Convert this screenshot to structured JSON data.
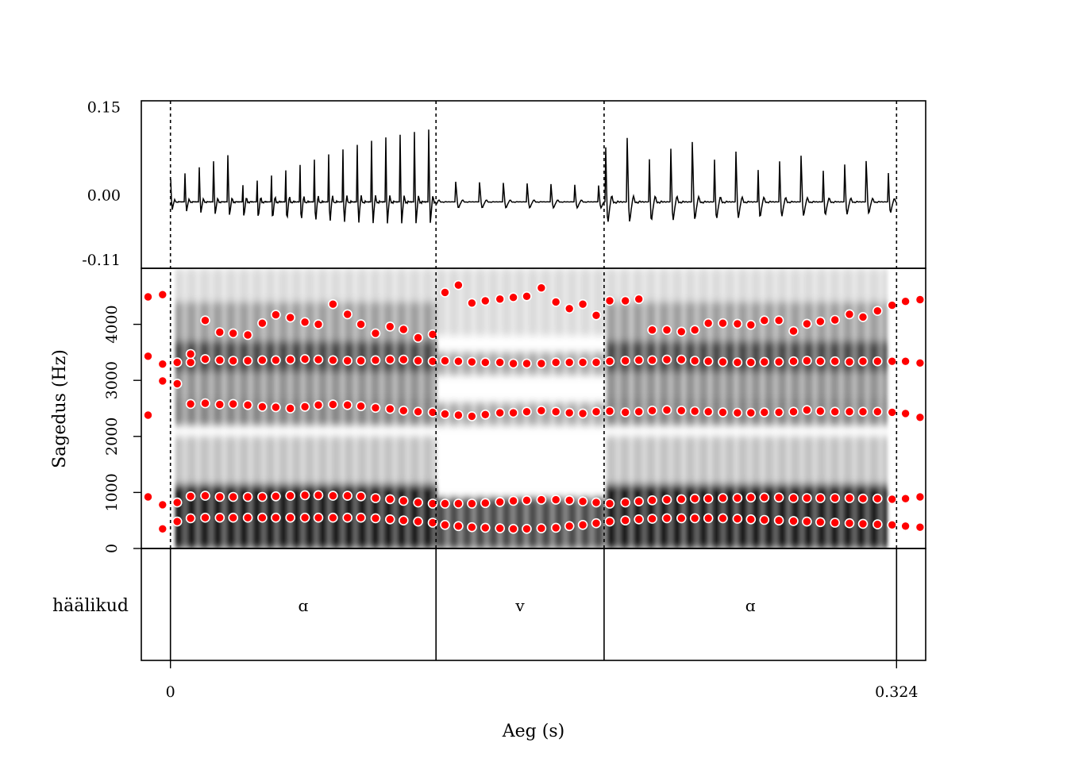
{
  "chart_data": {
    "type": "spectrogram",
    "xlabel": "Aeg (s)",
    "x_ticks": [
      "0",
      "0.324"
    ],
    "x_range": [
      -0.013,
      0.337
    ],
    "waveform": {
      "y_ticks": [
        "0.15",
        "0.00",
        "-0.11"
      ],
      "y_tick_values": [
        0.15,
        0.0,
        -0.11
      ],
      "y_range": [
        -0.125,
        0.16
      ]
    },
    "spectrogram": {
      "ylabel": "Sagedus (Hz)",
      "y_ticks": [
        "0",
        "1000",
        "2000",
        "3000",
        "4000"
      ],
      "y_tick_values": [
        0,
        1000,
        2000,
        3000,
        4000
      ],
      "y_range": [
        0,
        5000
      ],
      "formant_color": "#ff0000",
      "formants": {
        "t": [
          -0.01,
          -0.0035,
          0.003,
          0.009,
          0.0155,
          0.022,
          0.028,
          0.0345,
          0.041,
          0.047,
          0.0535,
          0.06,
          0.066,
          0.0725,
          0.079,
          0.085,
          0.0915,
          0.098,
          0.104,
          0.1105,
          0.117,
          0.1225,
          0.1285,
          0.1345,
          0.1405,
          0.147,
          0.153,
          0.159,
          0.1655,
          0.172,
          0.178,
          0.184,
          0.19,
          0.196,
          0.203,
          0.209,
          0.215,
          0.2215,
          0.228,
          0.234,
          0.24,
          0.2465,
          0.253,
          0.259,
          0.265,
          0.2715,
          0.278,
          0.284,
          0.29,
          0.2965,
          0.303,
          0.309,
          0.3155,
          0.322,
          0.328,
          0.3345
        ],
        "F1": [
          null,
          350,
          480,
          540,
          550,
          550,
          550,
          550,
          550,
          550,
          550,
          550,
          550,
          550,
          550,
          550,
          540,
          520,
          500,
          480,
          460,
          420,
          400,
          380,
          370,
          360,
          350,
          350,
          360,
          370,
          400,
          420,
          450,
          480,
          500,
          520,
          530,
          540,
          540,
          540,
          540,
          540,
          530,
          520,
          510,
          500,
          490,
          480,
          470,
          460,
          450,
          440,
          430,
          420,
          400,
          380
        ],
        "F2": [
          920,
          780,
          820,
          930,
          940,
          920,
          920,
          920,
          920,
          930,
          940,
          950,
          950,
          940,
          940,
          930,
          900,
          880,
          850,
          820,
          800,
          800,
          800,
          800,
          810,
          830,
          850,
          860,
          870,
          870,
          860,
          840,
          820,
          800,
          820,
          840,
          860,
          870,
          880,
          890,
          890,
          900,
          900,
          910,
          910,
          910,
          900,
          900,
          900,
          900,
          900,
          890,
          890,
          880,
          890,
          920
        ],
        "F2b": [
          2380,
          null,
          null,
          2580,
          2590,
          2570,
          2580,
          2560,
          2530,
          2520,
          2500,
          2530,
          2560,
          2570,
          2560,
          2540,
          2510,
          2490,
          2460,
          2440,
          2430,
          2400,
          2380,
          2360,
          2390,
          2420,
          2420,
          2440,
          2460,
          2440,
          2420,
          2410,
          2440,
          2450,
          2430,
          2440,
          2460,
          2470,
          2460,
          2450,
          2440,
          2430,
          2420,
          2420,
          2430,
          2430,
          2440,
          2470,
          2450,
          2440,
          2440,
          2440,
          2440,
          2430,
          2410,
          2340
        ],
        "F3": [
          3430,
          2990,
          2940,
          3320,
          3380,
          3360,
          3350,
          3350,
          3360,
          3360,
          3370,
          3380,
          3370,
          3360,
          3350,
          3350,
          3360,
          3370,
          3370,
          3350,
          3340,
          3350,
          3340,
          3330,
          3320,
          3320,
          3300,
          3300,
          3300,
          3320,
          3320,
          3320,
          3320,
          3340,
          3350,
          3360,
          3360,
          3370,
          3370,
          3350,
          3340,
          3330,
          3320,
          3320,
          3330,
          3330,
          3340,
          3350,
          3340,
          3340,
          3330,
          3340,
          3340,
          3340,
          3340,
          3310
        ],
        "F3b": [
          null,
          3290,
          3320,
          3470,
          null,
          null,
          null,
          null,
          null,
          null,
          null,
          null,
          null,
          null,
          null,
          null,
          null,
          null,
          null,
          null,
          null,
          null,
          null,
          null,
          null,
          null,
          null,
          null,
          null,
          null,
          null,
          null,
          null,
          null,
          null,
          null,
          null,
          null,
          null,
          null,
          null,
          null,
          null,
          null,
          null,
          null,
          null,
          null,
          null,
          null,
          null,
          null,
          null,
          null,
          null,
          null
        ],
        "F4": [
          4490,
          4530,
          null,
          null,
          4070,
          3860,
          3840,
          3810,
          4020,
          4170,
          4120,
          4040,
          4000,
          4360,
          4180,
          4000,
          3840,
          3960,
          3910,
          3760,
          3820,
          4570,
          4700,
          4380,
          4420,
          4450,
          4480,
          4500,
          4650,
          4400,
          4280,
          4360,
          4160,
          4420,
          4420,
          4450,
          3900,
          3900,
          3870,
          3900,
          4020,
          4020,
          4010,
          3990,
          4070,
          4070,
          3880,
          4010,
          4050,
          4080,
          4180,
          4130,
          4240,
          4340,
          4410,
          4440
        ]
      }
    },
    "tier": {
      "name": "häälikud",
      "boundaries": [
        0.0,
        0.1185,
        0.1935,
        0.324
      ],
      "labels": [
        "ɑ",
        "v",
        "ɑ"
      ]
    }
  }
}
